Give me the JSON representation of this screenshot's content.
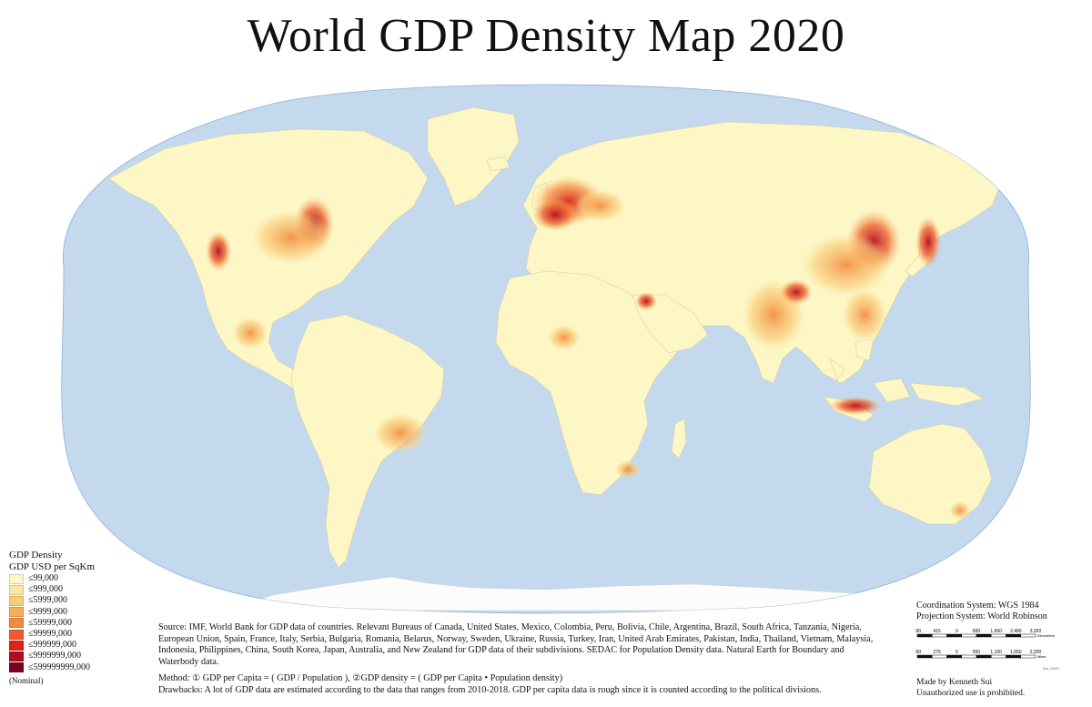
{
  "title": "World GDP Density Map 2020",
  "map": {
    "projection": "World Robinson",
    "colors": {
      "ocean": "#c4d9ee",
      "land": "#fdf7c6",
      "border": "#d6cfa6",
      "ice": "#fcfcfa"
    }
  },
  "legend": {
    "title": "GDP Density",
    "unit": "GDP USD per SqKm",
    "items": [
      {
        "label": "≤99,000",
        "color": "#fdf7c6"
      },
      {
        "label": "≤999,000",
        "color": "#fbe7a2"
      },
      {
        "label": "≤5999,000",
        "color": "#f9cd78"
      },
      {
        "label": "≤9999,000",
        "color": "#f6ad57"
      },
      {
        "label": "≤59999,000",
        "color": "#f28a3e"
      },
      {
        "label": "≤99999,000",
        "color": "#ed5c2c"
      },
      {
        "label": "≤999999,000",
        "color": "#dc2419"
      },
      {
        "label": "≤9999999,000",
        "color": "#b00d1e"
      },
      {
        "label": "≤599999999,000",
        "color": "#7c0021"
      }
    ],
    "note": "(Nominal)"
  },
  "notes": {
    "source": "Source: IMF, World Bank for GDP data of countries. Relevant Bureaus of Canada, United States, Mexico, Colombia, Peru, Bolivia, Chile, Argentina, Brazil, South Africa, Tanzania, Nigeria, European Union, Spain, France, Italy, Serbia, Bulgaria, Romania, Belarus, Norway, Sweden, Ukraine, Russia, Turkey, Iran, United Arab Emirates, Pakistan, India, Thailand, Vietnam, Malaysia, Indonesia, Philippines, China, South Korea, Japan, Australia, and New Zealand for GDP data of their subdivisions. SEDAC for Population Density data. Natural Earth for Boundary and Waterbody data.",
    "method": "Method: ① GDP per Capita = ( GDP / Population ),  ②GDP density = ( GDP per Capita • Population density)",
    "drawbacks": "Drawbacks: A lot of GDP data are estimated according to the data that ranges from 2010-2018. GDP per capita data is rough since it is counted according to the political divisions."
  },
  "coordination": "Coordination System: WGS 1984",
  "projection_label": "Projection System: World Robinson",
  "scale_bar": {
    "km_ticks": [
      "830",
      "415",
      "0",
      "830",
      "1,660",
      "2,490",
      "3,320"
    ],
    "km_unit": "Kilometers",
    "mi_ticks": [
      "550",
      "275",
      "0",
      "550",
      "1,100",
      "1,650",
      "2,200"
    ],
    "mi_unit": "Miles",
    "small_note": "Esri, USGS"
  },
  "credit": {
    "author": "Made by Kenneth Sui",
    "rights": "Unauthorized use is prohibited."
  }
}
